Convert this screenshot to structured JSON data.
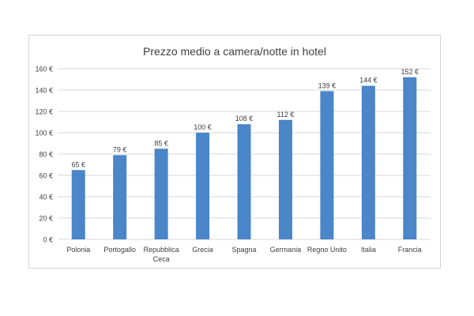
{
  "chart_data": {
    "type": "bar",
    "title": "Prezzo medio a camera/notte in hotel",
    "xlabel": "",
    "ylabel": "",
    "categories": [
      "Polonia",
      "Portogallo",
      "Repubblica Ceca",
      "Grecia",
      "Spagna",
      "Germania",
      "Regno Unito",
      "Italia",
      "Francia"
    ],
    "category_lines": [
      [
        "Polonia"
      ],
      [
        "Portogallo"
      ],
      [
        "Repubblica",
        "Ceca"
      ],
      [
        "Grecia"
      ],
      [
        "Spagna"
      ],
      [
        "Germania"
      ],
      [
        "Regno Unito"
      ],
      [
        "Italia"
      ],
      [
        "Francia"
      ]
    ],
    "values": [
      65,
      79,
      85,
      100,
      108,
      112,
      139,
      144,
      152
    ],
    "data_labels": [
      "65 €",
      "79 €",
      "85 €",
      "100 €",
      "108 €",
      "112 €",
      "139 €",
      "144 €",
      "152 €"
    ],
    "ylim": [
      0,
      160
    ],
    "yticks": [
      0,
      20,
      40,
      60,
      80,
      100,
      120,
      140,
      160
    ],
    "ytick_labels": [
      "0 €",
      "20 €",
      "40 €",
      "60 €",
      "80 €",
      "100 €",
      "120 €",
      "140 €",
      "160 €"
    ],
    "grid": true,
    "legend": "none",
    "bar_color": "#4a86c8",
    "grid_color": "#d9d9d9",
    "text_color": "#404040"
  }
}
